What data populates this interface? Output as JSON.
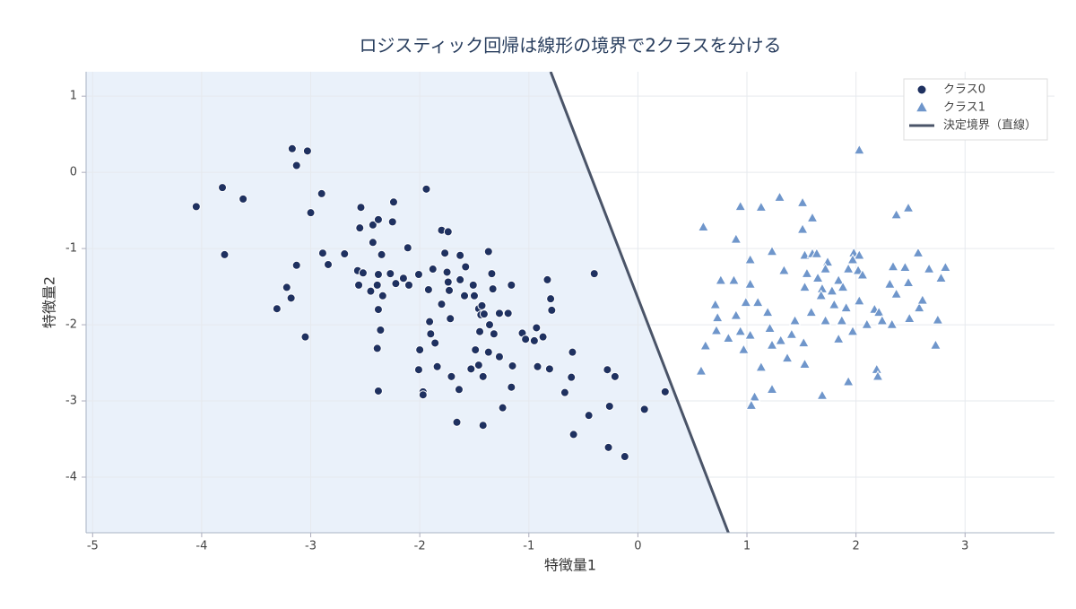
{
  "chart_data": {
    "type": "scatter",
    "title": "ロジスティック回帰は線形の境界で2クラスを分ける",
    "x_label": "特徴量1",
    "y_label": "特徴量2",
    "xlim": [
      -5.06,
      3.82
    ],
    "ylim": [
      -4.73,
      1.32
    ],
    "xticks": [
      -5,
      -4,
      -3,
      -2,
      -1,
      0,
      1,
      2,
      3
    ],
    "yticks": [
      -4,
      -3,
      -2,
      -1,
      0,
      1
    ],
    "grid": true,
    "legend_position": "top-right",
    "series": [
      {
        "name": "クラス0",
        "marker": "circle",
        "color": "#1f3160",
        "x": [
          -4.05,
          -3.81,
          -3.79,
          -3.62,
          -3.17,
          -3.13,
          -3.03,
          -3.0,
          -2.9,
          -3.13,
          -3.31,
          -3.22,
          -3.18,
          -3.05,
          -2.89,
          -2.84,
          -2.69,
          -2.54,
          -2.55,
          -2.57,
          -2.52,
          -2.56,
          -2.45,
          -2.43,
          -2.43,
          -2.39,
          -2.38,
          -2.35,
          -2.38,
          -2.39,
          -2.34,
          -2.38,
          -2.36,
          -2.38,
          -2.27,
          -2.25,
          -2.24,
          -2.22,
          -2.15,
          -2.11,
          -2.1,
          -2.01,
          -2.01,
          -2.0,
          -1.97,
          -1.97,
          -1.94,
          -1.92,
          -1.91,
          -1.9,
          -1.88,
          -1.86,
          -1.84,
          -1.8,
          -1.8,
          -1.77,
          -1.75,
          -1.74,
          -1.74,
          -1.72,
          -1.73,
          -1.71,
          -1.66,
          -1.63,
          -1.63,
          -1.64,
          -1.59,
          -1.58,
          -1.53,
          -1.51,
          -1.5,
          -1.49,
          -1.46,
          -1.46,
          -1.45,
          -1.44,
          -1.43,
          -1.42,
          -1.42,
          -1.41,
          -1.37,
          -1.37,
          -1.36,
          -1.34,
          -1.33,
          -1.32,
          -1.27,
          -1.27,
          -1.24,
          -1.19,
          -1.15,
          -1.16,
          -1.16,
          -1.06,
          -1.03,
          -0.95,
          -0.93,
          -0.92,
          -0.87,
          -0.83,
          -0.81,
          -0.8,
          -0.79,
          -0.67,
          -0.61,
          -0.59,
          -0.6,
          -0.45,
          -0.4,
          -0.28,
          -0.26,
          -0.27,
          -0.21,
          -0.12,
          0.06,
          0.25
        ],
        "y": [
          -0.45,
          -0.2,
          -1.08,
          -0.35,
          0.31,
          0.09,
          0.28,
          -0.53,
          -0.28,
          -1.22,
          -1.79,
          -1.51,
          -1.65,
          -2.16,
          -1.06,
          -1.21,
          -1.07,
          -0.46,
          -0.73,
          -1.29,
          -1.32,
          -1.48,
          -1.56,
          -0.69,
          -0.92,
          -2.31,
          -0.62,
          -1.08,
          -1.34,
          -1.48,
          -1.62,
          -1.8,
          -2.07,
          -2.87,
          -1.33,
          -0.65,
          -0.39,
          -1.46,
          -1.39,
          -0.99,
          -1.48,
          -1.34,
          -2.59,
          -2.33,
          -2.88,
          -2.92,
          -0.22,
          -1.54,
          -1.96,
          -2.12,
          -1.27,
          -2.24,
          -2.55,
          -1.73,
          -0.76,
          -1.06,
          -1.31,
          -0.78,
          -1.44,
          -1.92,
          -1.55,
          -2.68,
          -3.28,
          -1.09,
          -1.41,
          -2.85,
          -1.62,
          -1.24,
          -2.58,
          -1.48,
          -1.62,
          -2.33,
          -2.53,
          -1.79,
          -2.09,
          -1.87,
          -1.75,
          -2.68,
          -3.32,
          -1.86,
          -1.04,
          -2.36,
          -2.0,
          -1.33,
          -1.53,
          -2.12,
          -1.85,
          -2.42,
          -3.09,
          -1.85,
          -2.54,
          -2.82,
          -1.48,
          -2.11,
          -2.19,
          -2.21,
          -2.04,
          -2.55,
          -2.16,
          -1.41,
          -2.58,
          -1.66,
          -1.81,
          -2.89,
          -2.69,
          -3.44,
          -2.36,
          -3.19,
          -1.33,
          -2.59,
          -3.07,
          -3.61,
          -2.68,
          -3.73,
          -3.11,
          -2.88
        ]
      },
      {
        "name": "クラス1",
        "marker": "triangle",
        "color": "#6f96cb",
        "x": [
          0.6,
          0.94,
          1.3,
          1.13,
          1.51,
          1.6,
          2.03,
          2.37,
          2.48,
          0.9,
          1.51,
          1.23,
          1.03,
          1.34,
          1.53,
          1.6,
          1.64,
          1.74,
          1.98,
          2.03,
          2.34,
          2.45,
          2.57,
          2.67,
          2.78,
          2.82,
          0.76,
          0.88,
          1.03,
          0.71,
          0.73,
          0.62,
          0.58,
          0.72,
          0.83,
          0.9,
          0.94,
          0.97,
          0.99,
          1.03,
          1.1,
          1.13,
          1.19,
          1.21,
          1.23,
          1.23,
          1.31,
          1.37,
          1.41,
          1.44,
          1.52,
          1.53,
          1.55,
          1.53,
          1.59,
          1.65,
          1.69,
          1.72,
          1.72,
          1.68,
          1.78,
          1.8,
          1.84,
          1.84,
          1.87,
          1.88,
          1.91,
          1.93,
          1.97,
          2.02,
          2.03,
          1.97,
          2.1,
          2.06,
          2.17,
          2.21,
          2.24,
          2.19,
          2.2,
          2.33,
          2.31,
          2.37,
          2.48,
          2.49,
          2.58,
          2.61,
          2.73,
          2.75,
          1.69,
          1.93,
          1.07,
          1.04
        ],
        "y": [
          -0.72,
          -0.45,
          -0.33,
          -0.46,
          -0.4,
          -0.6,
          0.29,
          -0.56,
          -0.47,
          -0.88,
          -0.75,
          -1.04,
          -1.15,
          -1.29,
          -1.09,
          -1.07,
          -1.07,
          -1.18,
          -1.06,
          -1.09,
          -1.24,
          -1.25,
          -1.06,
          -1.27,
          -1.39,
          -1.25,
          -1.42,
          -1.42,
          -1.47,
          -1.74,
          -1.91,
          -2.28,
          -2.61,
          -2.08,
          -2.18,
          -1.88,
          -2.09,
          -2.33,
          -1.71,
          -2.14,
          -1.71,
          -2.56,
          -1.84,
          -2.05,
          -2.27,
          -2.85,
          -2.21,
          -2.44,
          -2.13,
          -1.95,
          -2.24,
          -1.51,
          -1.33,
          -2.52,
          -1.84,
          -1.39,
          -1.53,
          -1.27,
          -1.95,
          -1.62,
          -1.56,
          -1.74,
          -1.42,
          -2.19,
          -1.95,
          -1.51,
          -1.78,
          -1.27,
          -1.15,
          -1.29,
          -1.69,
          -2.09,
          -2.0,
          -1.35,
          -1.8,
          -1.84,
          -1.95,
          -2.59,
          -2.68,
          -2.0,
          -1.47,
          -1.6,
          -1.45,
          -1.92,
          -1.78,
          -1.68,
          -2.27,
          -1.94,
          -2.93,
          -2.75,
          -2.95,
          -3.06
        ]
      },
      {
        "name": "決定境界（直線）",
        "marker": "line",
        "color": "#4a5468",
        "region_color": "#eaf1fa",
        "x": [
          -0.8,
          0.83
        ],
        "y": [
          1.32,
          -4.73
        ]
      }
    ]
  }
}
